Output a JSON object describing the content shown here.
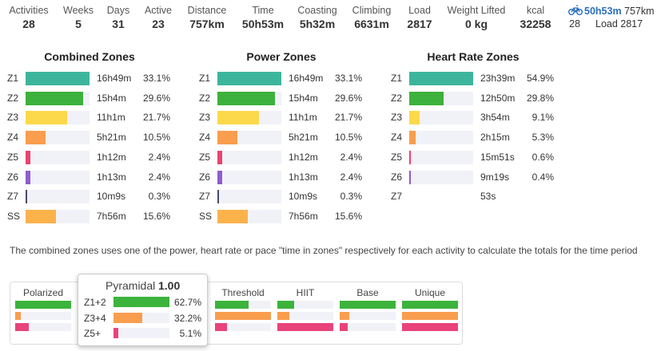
{
  "stats": [
    {
      "label": "Activities",
      "value": "28"
    },
    {
      "label": "Weeks",
      "value": "5"
    },
    {
      "label": "Days",
      "value": "31"
    },
    {
      "label": "Active",
      "value": "23"
    },
    {
      "label": "Distance",
      "value": "757km"
    },
    {
      "label": "Time",
      "value": "50h53m"
    },
    {
      "label": "Coasting",
      "value": "5h32m"
    },
    {
      "label": "Climbing",
      "value": "6631m"
    },
    {
      "label": "Load",
      "value": "2817"
    },
    {
      "label": "Weight Lifted",
      "value": "0 kg"
    },
    {
      "label": "kcal",
      "value": "32258"
    }
  ],
  "summary": {
    "duration": "50h53m",
    "distance": "757km",
    "activities": "28",
    "load": "Load 2817"
  },
  "zone_colors": {
    "Z1": "#3db59d",
    "Z2": "#3cb13c",
    "Z3": "#fbd94b",
    "Z4": "#f99d4e",
    "Z5": "#e8446f",
    "Z6": "#8f5dcf",
    "Z7": "#4a4a6a",
    "SS": "#fbb24b"
  },
  "zone_groups": [
    {
      "title": "Combined Zones",
      "rows": [
        {
          "zone": "Z1",
          "time": "16h49m",
          "percent": 33.1,
          "percent_label": "33.1%"
        },
        {
          "zone": "Z2",
          "time": "15h4m",
          "percent": 29.6,
          "percent_label": "29.6%"
        },
        {
          "zone": "Z3",
          "time": "11h1m",
          "percent": 21.7,
          "percent_label": "21.7%"
        },
        {
          "zone": "Z4",
          "time": "5h21m",
          "percent": 10.5,
          "percent_label": "10.5%"
        },
        {
          "zone": "Z5",
          "time": "1h12m",
          "percent": 2.4,
          "percent_label": "2.4%"
        },
        {
          "zone": "Z6",
          "time": "1h13m",
          "percent": 2.4,
          "percent_label": "2.4%"
        },
        {
          "zone": "Z7",
          "time": "10m9s",
          "percent": 0.3,
          "percent_label": "0.3%"
        },
        {
          "zone": "SS",
          "time": "7h56m",
          "percent": 15.6,
          "percent_label": "15.6%"
        }
      ]
    },
    {
      "title": "Power Zones",
      "rows": [
        {
          "zone": "Z1",
          "time": "16h49m",
          "percent": 33.1,
          "percent_label": "33.1%"
        },
        {
          "zone": "Z2",
          "time": "15h4m",
          "percent": 29.6,
          "percent_label": "29.6%"
        },
        {
          "zone": "Z3",
          "time": "11h1m",
          "percent": 21.7,
          "percent_label": "21.7%"
        },
        {
          "zone": "Z4",
          "time": "5h21m",
          "percent": 10.5,
          "percent_label": "10.5%"
        },
        {
          "zone": "Z5",
          "time": "1h12m",
          "percent": 2.4,
          "percent_label": "2.4%"
        },
        {
          "zone": "Z6",
          "time": "1h13m",
          "percent": 2.4,
          "percent_label": "2.4%"
        },
        {
          "zone": "Z7",
          "time": "10m9s",
          "percent": 0.3,
          "percent_label": "0.3%"
        },
        {
          "zone": "SS",
          "time": "7h56m",
          "percent": 15.6,
          "percent_label": "15.6%"
        }
      ]
    },
    {
      "title": "Heart Rate Zones",
      "rows": [
        {
          "zone": "Z1",
          "time": "23h39m",
          "percent": 54.9,
          "percent_label": "54.9%"
        },
        {
          "zone": "Z2",
          "time": "12h50m",
          "percent": 29.8,
          "percent_label": "29.8%"
        },
        {
          "zone": "Z3",
          "time": "3h54m",
          "percent": 9.1,
          "percent_label": "9.1%"
        },
        {
          "zone": "Z4",
          "time": "2h15m",
          "percent": 5.3,
          "percent_label": "5.3%"
        },
        {
          "zone": "Z5",
          "time": "15m51s",
          "percent": 0.6,
          "percent_label": "0.6%"
        },
        {
          "zone": "Z6",
          "time": "9m19s",
          "percent": 0.4,
          "percent_label": "0.4%"
        },
        {
          "zone": "Z7",
          "time": "53s",
          "percent": null
        }
      ]
    }
  ],
  "note": "The combined zones uses one of the power, heart rate or pace \"time in zones\" respectively for each activity to calculate the totals for the time period",
  "band_colors": [
    "#3cb33c",
    "#f99d4e",
    "#e8437a"
  ],
  "models": [
    {
      "name": "Polarized",
      "values": [
        75,
        7,
        18
      ]
    },
    {
      "name": "Threshold",
      "values": [
        33,
        55,
        12
      ]
    },
    {
      "name": "HIIT",
      "values": [
        20,
        14,
        66
      ]
    },
    {
      "name": "Base",
      "values": [
        75,
        13,
        11
      ]
    },
    {
      "name": "Unique",
      "values": [
        33.3,
        33.3,
        33.3
      ]
    }
  ],
  "popup": {
    "name": "Pyramidal",
    "score": "1.00",
    "rows": [
      {
        "label": "Z1+2",
        "value": 62.7,
        "value_label": "62.7%"
      },
      {
        "label": "Z3+4",
        "value": 32.2,
        "value_label": "32.2%"
      },
      {
        "label": "Z5+",
        "value": 5.1,
        "value_label": "5.1%"
      }
    ]
  }
}
